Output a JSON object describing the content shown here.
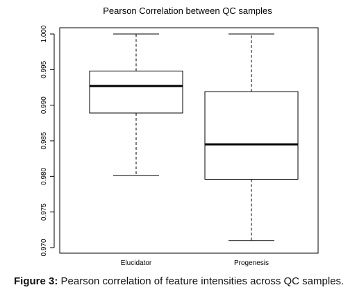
{
  "chart_data": {
    "type": "boxplot",
    "title": "Pearson Correlation between QC samples",
    "xlabel": "",
    "ylabel": "",
    "ylim": [
      0.97,
      1.0
    ],
    "yticks": [
      "0.970",
      "0.975",
      "0.980",
      "0.985",
      "0.990",
      "0.995",
      "1.000"
    ],
    "categories": [
      "Elucidator",
      "Progenesis"
    ],
    "boxes": [
      {
        "category": "Elucidator",
        "min": 0.9801,
        "q1": 0.9889,
        "median": 0.9927,
        "q3": 0.9948,
        "max": 1.0
      },
      {
        "category": "Progenesis",
        "min": 0.971,
        "q1": 0.9796,
        "median": 0.9845,
        "q3": 0.9919,
        "max": 1.0
      }
    ],
    "grid": false,
    "legend": "none"
  },
  "caption": {
    "label": "Figure 3:",
    "text": " Pearson correlation of feature intensities across QC samples."
  }
}
